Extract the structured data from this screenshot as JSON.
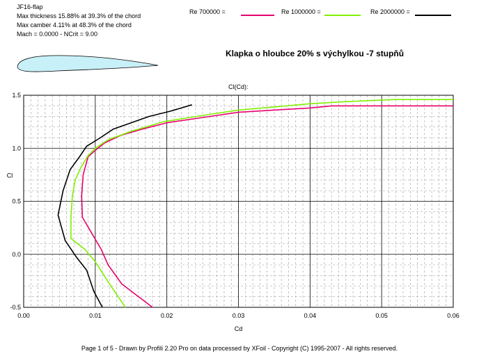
{
  "airfoil": {
    "name": "JF16-flap",
    "thickness": "Max thickness 15.88% at 39.3% of the chord",
    "camber": "Max camber 4.11% at 48.3% of the chord",
    "conditions": "Mach = 0.0000 - NCrit = 9.00",
    "fill_color": "#c8f0f8"
  },
  "legend": [
    {
      "label": "Re 700000 =",
      "color": "#e8006e"
    },
    {
      "label": "Re 1000000 =",
      "color": "#80f000"
    },
    {
      "label": "Re 2000000 =",
      "color": "#000000"
    }
  ],
  "subtitle": "Klapka o hloubce 20% s výchylkou -7 stupňů",
  "footer": "Page 1 of 5   -   Drawn by Profili 2.20 Pro on data processed by  XFoil - Copyright (C) 1995-2007 - All rights reserved.",
  "chart_data": {
    "type": "line",
    "title": "Cl(Cd):",
    "xlabel": "Cd",
    "ylabel": "Cl",
    "xlim": [
      0,
      0.06
    ],
    "ylim": [
      -0.5,
      1.5
    ],
    "x_ticks": [
      "0.00",
      "0.01",
      "0.02",
      "0.03",
      "0.04",
      "0.05",
      "0.06"
    ],
    "y_ticks": [
      "-0.5",
      "0.0",
      "0.5",
      "1.0",
      "1.5"
    ],
    "grid": true,
    "series": [
      {
        "name": "Re 700000",
        "color": "#e8006e",
        "points": [
          [
            0.018,
            -0.5
          ],
          [
            0.0137,
            -0.28
          ],
          [
            0.0118,
            -0.1
          ],
          [
            0.0108,
            0.05
          ],
          [
            0.0095,
            0.2
          ],
          [
            0.0082,
            0.35
          ],
          [
            0.0081,
            0.55
          ],
          [
            0.0083,
            0.75
          ],
          [
            0.009,
            0.92
          ],
          [
            0.01,
            0.98
          ],
          [
            0.0113,
            1.05
          ],
          [
            0.0135,
            1.12
          ],
          [
            0.0165,
            1.18
          ],
          [
            0.02,
            1.24
          ],
          [
            0.025,
            1.29
          ],
          [
            0.03,
            1.34
          ],
          [
            0.035,
            1.36
          ],
          [
            0.04,
            1.38
          ],
          [
            0.043,
            1.4
          ],
          [
            0.05,
            1.4
          ],
          [
            0.06,
            1.4
          ]
        ]
      },
      {
        "name": "Re 1000000",
        "color": "#80f000",
        "points": [
          [
            0.0142,
            -0.5
          ],
          [
            0.012,
            -0.28
          ],
          [
            0.01,
            -0.07
          ],
          [
            0.0085,
            0.05
          ],
          [
            0.0066,
            0.15
          ],
          [
            0.0066,
            0.35
          ],
          [
            0.0068,
            0.55
          ],
          [
            0.0072,
            0.7
          ],
          [
            0.008,
            0.82
          ],
          [
            0.009,
            0.93
          ],
          [
            0.01,
            1.0
          ],
          [
            0.0118,
            1.08
          ],
          [
            0.015,
            1.16
          ],
          [
            0.0195,
            1.25
          ],
          [
            0.025,
            1.31
          ],
          [
            0.03,
            1.36
          ],
          [
            0.035,
            1.39
          ],
          [
            0.04,
            1.42
          ],
          [
            0.045,
            1.44
          ],
          [
            0.052,
            1.46
          ],
          [
            0.06,
            1.46
          ]
        ]
      },
      {
        "name": "Re 2000000",
        "color": "#000000",
        "points": [
          [
            0.011,
            -0.5
          ],
          [
            0.0098,
            -0.35
          ],
          [
            0.0088,
            -0.15
          ],
          [
            0.0074,
            -0.03
          ],
          [
            0.0058,
            0.13
          ],
          [
            0.0048,
            0.37
          ],
          [
            0.0055,
            0.6
          ],
          [
            0.0065,
            0.8
          ],
          [
            0.0078,
            0.92
          ],
          [
            0.0088,
            1.02
          ],
          [
            0.0105,
            1.09
          ],
          [
            0.0125,
            1.18
          ],
          [
            0.015,
            1.24
          ],
          [
            0.0175,
            1.3
          ],
          [
            0.0205,
            1.35
          ],
          [
            0.0235,
            1.41
          ]
        ]
      }
    ]
  }
}
